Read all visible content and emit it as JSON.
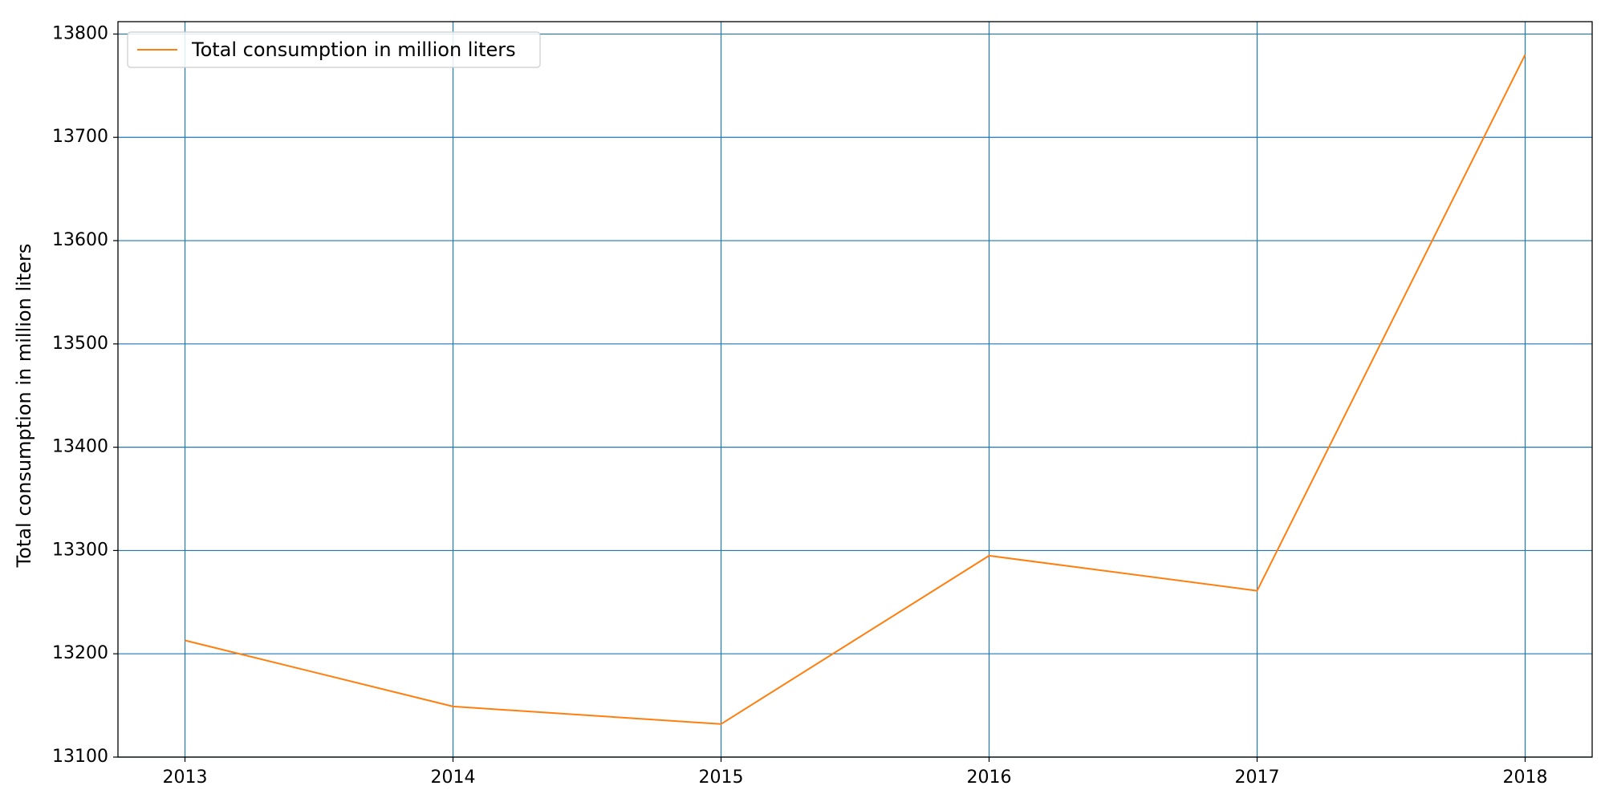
{
  "chart_data": {
    "type": "line",
    "title": "",
    "xlabel": "",
    "ylabel": "Total consumption in million liters",
    "x": [
      2013,
      2014,
      2015,
      2016,
      2017,
      2018
    ],
    "xticks": [
      "2013",
      "2014",
      "2015",
      "2016",
      "2017",
      "2018"
    ],
    "xlim": [
      2012.75,
      2018.25
    ],
    "ylim": [
      13100,
      13812
    ],
    "yticks": [
      13100,
      13200,
      13300,
      13400,
      13500,
      13600,
      13700,
      13800
    ],
    "grid": true,
    "legend_position": "upper-left",
    "series": [
      {
        "name": "Total consumption in million liters",
        "values": [
          13213,
          13149,
          13132,
          13295,
          13261,
          13780
        ],
        "color": "#ff7f0e"
      }
    ],
    "grid_color": "#1f77b4"
  }
}
